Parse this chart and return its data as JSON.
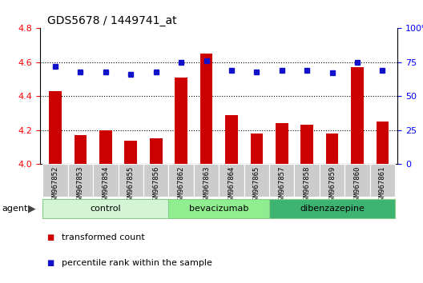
{
  "title": "GDS5678 / 1449741_at",
  "samples": [
    "GSM967852",
    "GSM967853",
    "GSM967854",
    "GSM967855",
    "GSM967856",
    "GSM967862",
    "GSM967863",
    "GSM967864",
    "GSM967865",
    "GSM967857",
    "GSM967858",
    "GSM967859",
    "GSM967860",
    "GSM967861"
  ],
  "transformed_count": [
    4.43,
    4.17,
    4.2,
    4.14,
    4.15,
    4.51,
    4.65,
    4.29,
    4.18,
    4.24,
    4.23,
    4.18,
    4.57,
    4.25
  ],
  "percentile_rank": [
    72,
    68,
    68,
    66,
    68,
    75,
    76,
    69,
    68,
    69,
    69,
    67,
    75,
    69
  ],
  "groups": [
    {
      "label": "control",
      "start": 0,
      "end": 5,
      "color": "#d4f5d4"
    },
    {
      "label": "bevacizumab",
      "start": 5,
      "end": 9,
      "color": "#90ee90"
    },
    {
      "label": "dibenzazepine",
      "start": 9,
      "end": 14,
      "color": "#3cb371"
    }
  ],
  "ylim_left": [
    4.0,
    4.8
  ],
  "ylim_right": [
    0,
    100
  ],
  "yticks_left": [
    4.0,
    4.2,
    4.4,
    4.6,
    4.8
  ],
  "yticks_right": [
    0,
    25,
    50,
    75,
    100
  ],
  "bar_color": "#cc0000",
  "dot_color": "#1111cc",
  "bar_width": 0.5,
  "bar_bottom": 4.0,
  "hline_color": "black",
  "hline_style": ":",
  "hline_lw": 0.8,
  "hlines": [
    4.2,
    4.4,
    4.6
  ],
  "tick_bg_color": "#cccccc",
  "legend_items": [
    {
      "label": "transformed count",
      "color": "#cc0000"
    },
    {
      "label": "percentile rank within the sample",
      "color": "#1111cc"
    }
  ]
}
